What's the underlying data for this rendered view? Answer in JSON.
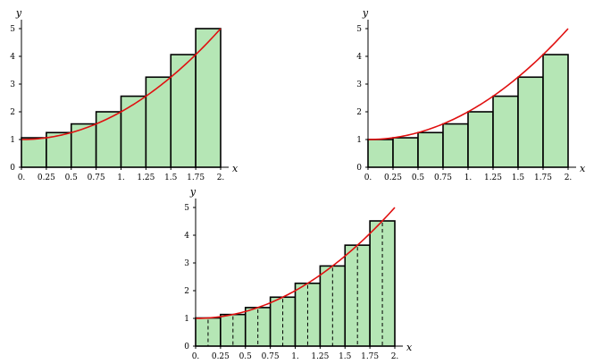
{
  "colors": {
    "bar_fill": "#b5e6b5",
    "bar_stroke": "#000000",
    "curve": "#e01010",
    "axis": "#000000",
    "divider": "#000000"
  },
  "chart_data": [
    {
      "type": "bar",
      "title": "",
      "xlabel": "x",
      "ylabel": "y",
      "xlim": [
        0,
        2
      ],
      "ylim": [
        0,
        5
      ],
      "x_tick_labels": [
        "0.",
        "0.25",
        "0.5",
        "0.75",
        "1.",
        "1.25",
        "1.5",
        "1.75",
        "2."
      ],
      "y_tick_labels": [
        "0",
        "1",
        "2",
        "3",
        "4",
        "5"
      ],
      "bar_width": 0.25,
      "bars": [
        {
          "x0": 0.0,
          "value": 1.0625
        },
        {
          "x0": 0.25,
          "value": 1.25
        },
        {
          "x0": 0.5,
          "value": 1.5625
        },
        {
          "x0": 0.75,
          "value": 2.0
        },
        {
          "x0": 1.0,
          "value": 2.5625
        },
        {
          "x0": 1.25,
          "value": 3.25
        },
        {
          "x0": 1.5,
          "value": 4.0625
        },
        {
          "x0": 1.75,
          "value": 5.0
        }
      ],
      "curve": {
        "function": "y = x^2 + 1",
        "x_range": [
          0,
          2
        ]
      },
      "midpoint_dividers": false
    },
    {
      "type": "bar",
      "title": "",
      "xlabel": "x",
      "ylabel": "y",
      "xlim": [
        0,
        2
      ],
      "ylim": [
        0,
        5
      ],
      "x_tick_labels": [
        "0.",
        "0.25",
        "0.5",
        "0.75",
        "1.",
        "1.25",
        "1.5",
        "1.75",
        "2."
      ],
      "y_tick_labels": [
        "0",
        "1",
        "2",
        "3",
        "4",
        "5"
      ],
      "bar_width": 0.25,
      "bars": [
        {
          "x0": 0.0,
          "value": 1.0
        },
        {
          "x0": 0.25,
          "value": 1.0625
        },
        {
          "x0": 0.5,
          "value": 1.25
        },
        {
          "x0": 0.75,
          "value": 1.5625
        },
        {
          "x0": 1.0,
          "value": 2.0
        },
        {
          "x0": 1.25,
          "value": 2.5625
        },
        {
          "x0": 1.5,
          "value": 3.25
        },
        {
          "x0": 1.75,
          "value": 4.0625
        }
      ],
      "curve": {
        "function": "y = x^2 + 1",
        "x_range": [
          0,
          2
        ]
      },
      "midpoint_dividers": false
    },
    {
      "type": "bar",
      "title": "",
      "xlabel": "x",
      "ylabel": "y",
      "xlim": [
        0,
        2
      ],
      "ylim": [
        0,
        5
      ],
      "x_tick_labels": [
        "0.",
        "0.25",
        "0.5",
        "0.75",
        "1.",
        "1.25",
        "1.5",
        "1.75",
        "2."
      ],
      "y_tick_labels": [
        "0",
        "1",
        "2",
        "3",
        "4",
        "5"
      ],
      "bar_width": 0.25,
      "bars": [
        {
          "x0": 0.0,
          "value": 1.015625
        },
        {
          "x0": 0.25,
          "value": 1.140625
        },
        {
          "x0": 0.5,
          "value": 1.390625
        },
        {
          "x0": 0.75,
          "value": 1.765625
        },
        {
          "x0": 1.0,
          "value": 2.265625
        },
        {
          "x0": 1.25,
          "value": 2.890625
        },
        {
          "x0": 1.5,
          "value": 3.640625
        },
        {
          "x0": 1.75,
          "value": 4.515625
        }
      ],
      "curve": {
        "function": "y = x^2 + 1",
        "x_range": [
          0,
          2
        ]
      },
      "midpoint_dividers": true
    }
  ]
}
